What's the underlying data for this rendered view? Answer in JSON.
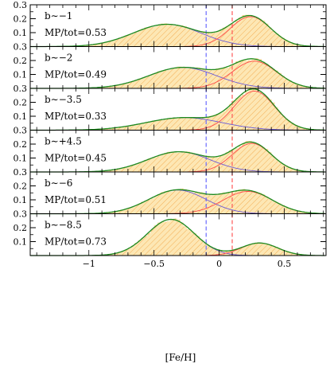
{
  "chart_data": {
    "type": "bar",
    "xlabel": "[Fe/H]",
    "ylabel": "",
    "xlim": [
      -1.45,
      0.82
    ],
    "ylim": [
      0,
      0.3
    ],
    "xticks": [
      -1,
      -0.5,
      0,
      0.5
    ],
    "xtick_labels": [
      "−1",
      "−0.5",
      "0",
      "0.5"
    ],
    "yticks": [
      0.1,
      0.2,
      0.3
    ],
    "ytick_labels": [
      "0.1",
      "0.2",
      "0.3"
    ],
    "vlines": [
      {
        "x": -0.1,
        "style": "dashed",
        "color": "#6b6bff"
      },
      {
        "x": 0.1,
        "style": "dashed",
        "color": "#ff5a5a"
      }
    ],
    "colors": {
      "histogram_fill": "#fde7b4",
      "hatch": "#f3a94a",
      "metal_poor": "#6b5bd6",
      "metal_rich": "#ff4b4b",
      "total": "#1e8a1e"
    },
    "panels": [
      {
        "label": "b∼−1",
        "ratio": "MP/tot=0.53",
        "mp": {
          "amp": 0.16,
          "mu": -0.4,
          "sigma": 0.26
        },
        "mr": {
          "amp": 0.215,
          "mu": 0.24,
          "sigma": 0.155
        }
      },
      {
        "label": "b∼−2",
        "ratio": "MP/tot=0.49",
        "mp": {
          "amp": 0.15,
          "mu": -0.28,
          "sigma": 0.26
        },
        "mr": {
          "amp": 0.195,
          "mu": 0.27,
          "sigma": 0.17
        }
      },
      {
        "label": "b∼−3.5",
        "ratio": "MP/tot=0.33",
        "mp": {
          "amp": 0.09,
          "mu": -0.27,
          "sigma": 0.29
        },
        "mr": {
          "amp": 0.28,
          "mu": 0.27,
          "sigma": 0.155
        }
      },
      {
        "label": "b∼+4.5",
        "ratio": "MP/tot=0.45",
        "mp": {
          "amp": 0.145,
          "mu": -0.31,
          "sigma": 0.24
        },
        "mr": {
          "amp": 0.205,
          "mu": 0.25,
          "sigma": 0.15
        }
      },
      {
        "label": "b∼−6",
        "ratio": "MP/tot=0.51",
        "mp": {
          "amp": 0.17,
          "mu": -0.32,
          "sigma": 0.22
        },
        "mr": {
          "amp": 0.16,
          "mu": 0.22,
          "sigma": 0.19
        }
      },
      {
        "label": "b∼−8.5",
        "ratio": "MP/tot=0.73",
        "mp": {
          "amp": 0.26,
          "mu": -0.37,
          "sigma": 0.18
        },
        "mr": {
          "amp": 0.09,
          "mu": 0.31,
          "sigma": 0.14
        }
      }
    ]
  }
}
